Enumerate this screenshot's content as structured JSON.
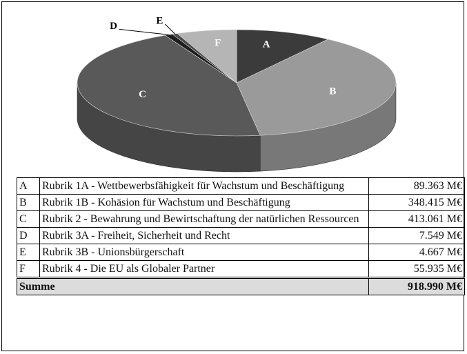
{
  "chart_data": {
    "type": "pie",
    "categories": [
      "A",
      "B",
      "C",
      "D",
      "E",
      "F"
    ],
    "values": [
      89363,
      348415,
      413061,
      7549,
      4667,
      55935
    ],
    "colors": [
      "#3b3b3b",
      "#9a9a9a",
      "#595959",
      "#1e1e1e",
      "#484848",
      "#b5b5b5"
    ]
  },
  "table": {
    "rows": [
      {
        "key": "A",
        "label": "Rubrik 1A - Wettbewerbsfähigkeit für Wachstum und Beschäftigung",
        "value": "89.363 M€"
      },
      {
        "key": "B",
        "label": "Rubrik 1B - Kohäsion für Wachstum und Beschäftigung",
        "value": "348.415 M€"
      },
      {
        "key": "C",
        "label": "Rubrik 2 - Bewahrung und Bewirtschaftung der natürlichen Ressourcen",
        "value": "413.061 M€"
      },
      {
        "key": "D",
        "label": "Rubrik 3A - Freiheit, Sicherheit und Recht",
        "value": "7.549 M€"
      },
      {
        "key": "E",
        "label": "Rubrik 3B - Unionsbürgerschaft",
        "value": "4.667 M€"
      },
      {
        "key": "F",
        "label": "Rubrik 4 - Die EU als Globaler Partner",
        "value": "55.935 M€"
      }
    ],
    "total": {
      "label": "Summe",
      "value": "918.990 M€"
    }
  }
}
